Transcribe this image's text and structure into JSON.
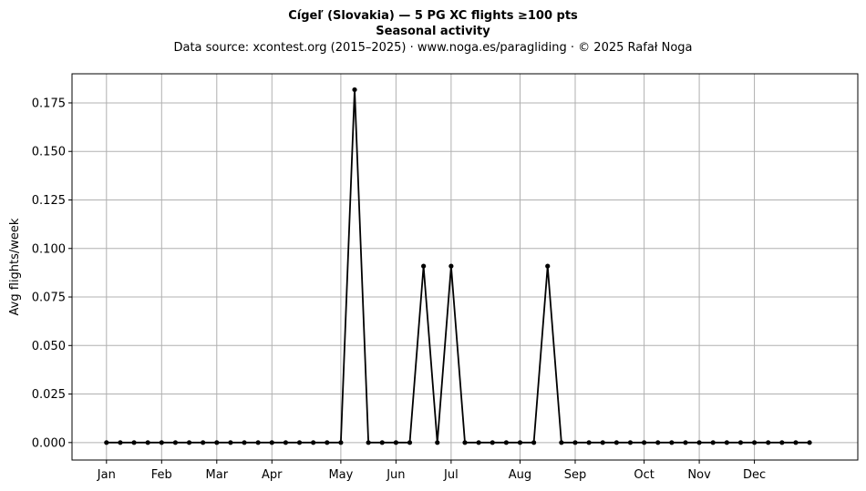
{
  "chart_data": {
    "type": "line",
    "title": "Cígeľ (Slovakia)  —  5 PG XC flights ≥100 pts",
    "subtitle": "Seasonal activity",
    "source": "Data source: xcontest.org (2015–2025)  ·  www.noga.es/paragliding  ·  © 2025 Rafał Noga",
    "ylabel": "Avg flights/week",
    "xlabel": "",
    "grid": true,
    "xlim": [
      -2.5,
      54.5
    ],
    "ylim": [
      -0.009,
      0.19
    ],
    "month_ticks": [
      {
        "label": "Jan",
        "week": 0
      },
      {
        "label": "Feb",
        "week": 4
      },
      {
        "label": "Mar",
        "week": 8
      },
      {
        "label": "Apr",
        "week": 12
      },
      {
        "label": "May",
        "week": 17
      },
      {
        "label": "Jun",
        "week": 21
      },
      {
        "label": "Jul",
        "week": 25
      },
      {
        "label": "Aug",
        "week": 30
      },
      {
        "label": "Sep",
        "week": 34
      },
      {
        "label": "Oct",
        "week": 39
      },
      {
        "label": "Nov",
        "week": 43
      },
      {
        "label": "Dec",
        "week": 47
      }
    ],
    "y_ticks": [
      {
        "label": "0.000",
        "value": 0.0
      },
      {
        "label": "0.025",
        "value": 0.025
      },
      {
        "label": "0.050",
        "value": 0.05
      },
      {
        "label": "0.075",
        "value": 0.075
      },
      {
        "label": "0.100",
        "value": 0.1
      },
      {
        "label": "0.125",
        "value": 0.125
      },
      {
        "label": "0.150",
        "value": 0.15
      },
      {
        "label": "0.175",
        "value": 0.175
      }
    ],
    "series": [
      {
        "x": [
          0,
          1,
          2,
          3,
          4,
          5,
          6,
          7,
          8,
          9,
          10,
          11,
          12,
          13,
          14,
          15,
          16,
          17,
          18,
          19,
          20,
          21,
          22,
          23,
          24,
          25,
          26,
          27,
          28,
          29,
          30,
          31,
          32,
          33,
          34,
          35,
          36,
          37,
          38,
          39,
          40,
          41,
          42,
          43,
          44,
          45,
          46,
          47,
          48,
          49,
          50,
          51
        ],
        "values": [
          0,
          0,
          0,
          0,
          0,
          0,
          0,
          0,
          0,
          0,
          0,
          0,
          0,
          0,
          0,
          0,
          0,
          0,
          0.1818,
          0,
          0,
          0,
          0,
          0.0909,
          0,
          0.0909,
          0,
          0,
          0,
          0,
          0,
          0,
          0.0909,
          0,
          0,
          0,
          0,
          0,
          0,
          0,
          0,
          0,
          0,
          0,
          0,
          0,
          0,
          0,
          0,
          0,
          0,
          0
        ],
        "color": "#000000"
      }
    ]
  }
}
